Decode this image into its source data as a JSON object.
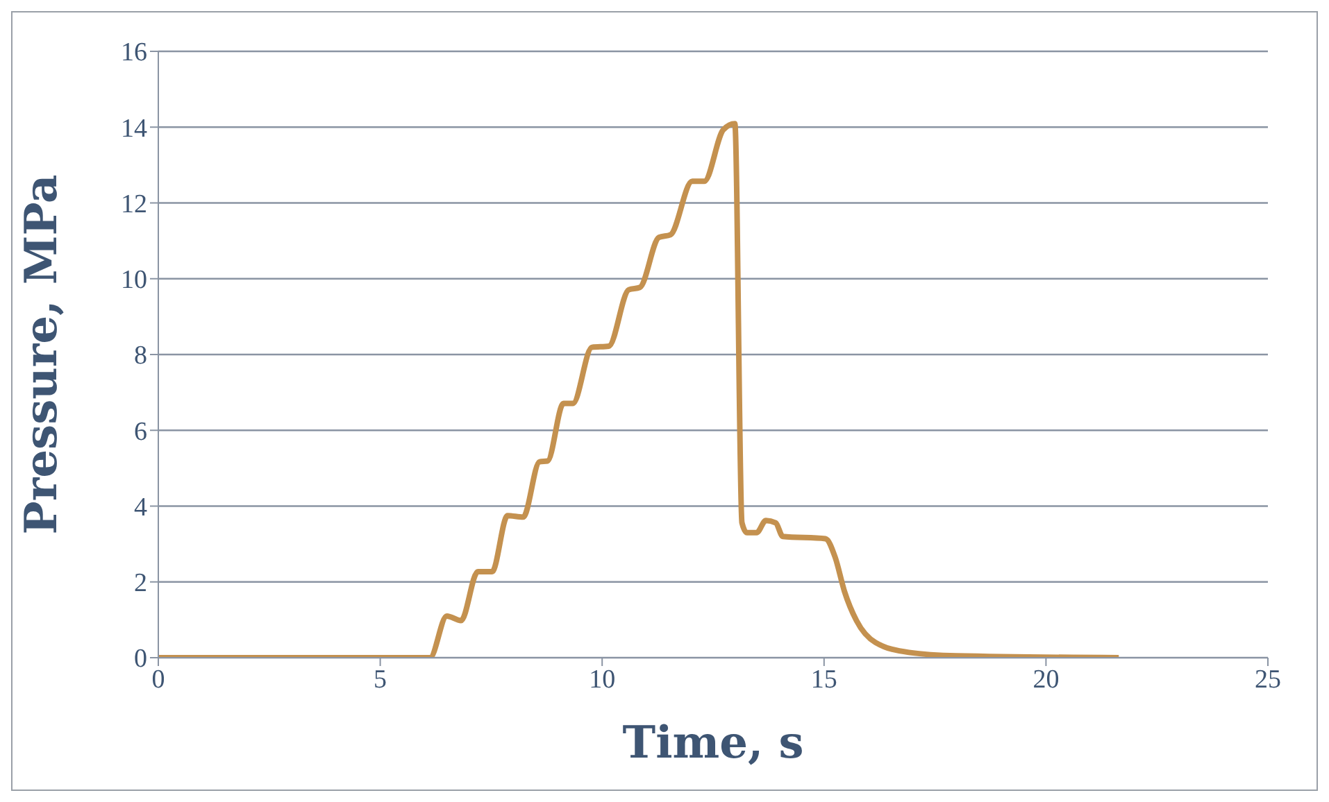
{
  "chart_data": {
    "type": "line",
    "xlabel": "Time, s",
    "ylabel": "Pressure, MPa",
    "xlim": [
      0,
      25
    ],
    "xticks": [
      0,
      5,
      10,
      15,
      20,
      25
    ],
    "ylim": [
      0,
      16
    ],
    "yticks": [
      0,
      2,
      4,
      6,
      8,
      10,
      12,
      14,
      16
    ],
    "grid": "y",
    "marker": "none",
    "line_style": "solid",
    "series": [
      {
        "color": "#c4914f",
        "x": [
          0,
          6.12,
          6.5,
          6.82,
          7.2,
          7.52,
          7.87,
          8.22,
          8.59,
          8.77,
          9.13,
          9.34,
          9.77,
          10.15,
          10.6,
          10.85,
          11.28,
          11.54,
          12.03,
          12.3,
          12.73,
          12.99,
          13.15,
          13.26,
          13.48,
          13.69,
          13.91,
          14.07,
          15.03,
          15.25,
          15.46,
          15.73,
          16.16,
          16.91,
          17.99,
          21.64
        ],
        "values": [
          0,
          0,
          1.1,
          0.98,
          2.27,
          2.27,
          3.75,
          3.71,
          5.17,
          5.19,
          6.71,
          6.71,
          8.19,
          8.22,
          9.71,
          9.77,
          11.09,
          11.16,
          12.57,
          12.57,
          13.93,
          14.09,
          3.56,
          3.3,
          3.3,
          3.62,
          3.56,
          3.2,
          3.14,
          2.65,
          1.75,
          0.98,
          0.4,
          0.14,
          0.05,
          0
        ]
      }
    ]
  }
}
